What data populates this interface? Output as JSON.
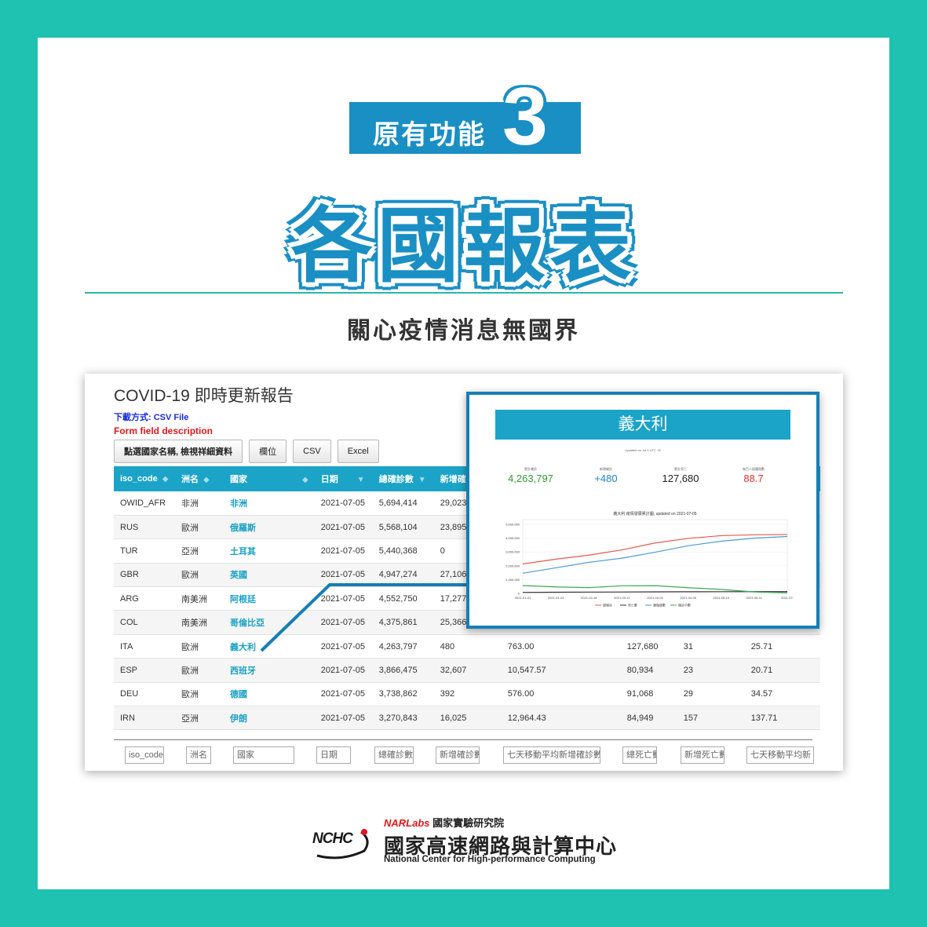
{
  "header": {
    "badge_label": "原有功能",
    "badge_number": "3",
    "title": "各國報表",
    "subtitle": "關心疫情消息無國界"
  },
  "report": {
    "title": "COVID-19 即時更新報告",
    "download": "下載方式: CSV File",
    "form_desc": "Form field description",
    "buttons": [
      "點選國家名稱, 檢視祥細資料",
      "欄位",
      "CSV",
      "Excel"
    ],
    "columns": [
      "iso_code",
      "洲名",
      "國家",
      "日期",
      "總確診數",
      "新增確診"
    ],
    "rows": [
      {
        "iso": "OWID_AFR",
        "continent": "非洲",
        "country": "非洲",
        "date": "2021-07-05",
        "total": "5,694,414",
        "new": "29,023",
        "avg": "",
        "deaths": "",
        "new_deaths": "",
        "avg_deaths": ""
      },
      {
        "iso": "RUS",
        "continent": "歐洲",
        "country": "俄羅斯",
        "date": "2021-07-05",
        "total": "5,568,104",
        "new": "23,895",
        "avg": "",
        "deaths": "",
        "new_deaths": "",
        "avg_deaths": ""
      },
      {
        "iso": "TUR",
        "continent": "亞洲",
        "country": "土耳其",
        "date": "2021-07-05",
        "total": "5,440,368",
        "new": "0",
        "avg": "",
        "deaths": "",
        "new_deaths": "",
        "avg_deaths": ""
      },
      {
        "iso": "GBR",
        "continent": "歐洲",
        "country": "英國",
        "date": "2021-07-05",
        "total": "4,947,274",
        "new": "27,106",
        "avg": "",
        "deaths": "",
        "new_deaths": "",
        "avg_deaths": ""
      },
      {
        "iso": "ARG",
        "continent": "南美洲",
        "country": "阿根廷",
        "date": "2021-07-05",
        "total": "4,552,750",
        "new": "17,277",
        "avg": "",
        "deaths": "",
        "new_deaths": "",
        "avg_deaths": ""
      },
      {
        "iso": "COL",
        "continent": "南美洲",
        "country": "哥倫比亞",
        "date": "2021-07-05",
        "total": "4,375,861",
        "new": "25,366",
        "avg": "",
        "deaths": "",
        "new_deaths": "",
        "avg_deaths": ""
      },
      {
        "iso": "ITA",
        "continent": "歐洲",
        "country": "義大利",
        "date": "2021-07-05",
        "total": "4,263,797",
        "new": "480",
        "avg": "763.00",
        "deaths": "127,680",
        "new_deaths": "31",
        "avg_deaths": "25.71"
      },
      {
        "iso": "ESP",
        "continent": "歐洲",
        "country": "西班牙",
        "date": "2021-07-05",
        "total": "3,866,475",
        "new": "32,607",
        "avg": "10,547.57",
        "deaths": "80,934",
        "new_deaths": "23",
        "avg_deaths": "20.71"
      },
      {
        "iso": "DEU",
        "continent": "歐洲",
        "country": "德國",
        "date": "2021-07-05",
        "total": "3,738,862",
        "new": "392",
        "avg": "576.00",
        "deaths": "91,068",
        "new_deaths": "29",
        "avg_deaths": "34.57"
      },
      {
        "iso": "IRN",
        "continent": "亞洲",
        "country": "伊朗",
        "date": "2021-07-05",
        "total": "3,270,843",
        "new": "16,025",
        "avg": "12,964.43",
        "deaths": "84,949",
        "new_deaths": "157",
        "avg_deaths": "137.71"
      }
    ],
    "filters": [
      "iso_code",
      "洲名",
      "國家",
      "日期",
      "總確診數",
      "新增確診數",
      "七天移動平均新增確診數",
      "總死亡數",
      "新增死亡數",
      "七天移動平均新"
    ]
  },
  "popup": {
    "country": "義大利",
    "updated": "Updated on Jul 5 UTC +8",
    "stats": [
      {
        "label": "累計確診",
        "value": "4,263,797",
        "color": "#2e9a36"
      },
      {
        "label": "新增確診",
        "value": "+480",
        "color": "#1e86c8"
      },
      {
        "label": "累計死亡",
        "value": "127,680",
        "color": "#222222"
      },
      {
        "label": "每百人接種劑數",
        "value": "88.7",
        "color": "#d9322a"
      }
    ]
  },
  "chart_data": {
    "type": "line",
    "title": "義大利 疫情發展累計圖, updated on 2021-07-05",
    "x": [
      "2021-01-01",
      "2021-01-24",
      "2021-02-16",
      "2021-03-11",
      "2021-04-03",
      "2021-04-26",
      "2021-05-19",
      "2021-06-11",
      "2021-07-"
    ],
    "yticks": [
      "0",
      "1,000,000",
      "2,000,000",
      "3,000,000",
      "4,000,000",
      "5,000,000"
    ],
    "ylim": [
      0,
      5000000
    ],
    "series": [
      {
        "name": "總確診",
        "color": "#e8584f",
        "values": [
          2130000,
          2480000,
          2770000,
          3150000,
          3650000,
          3980000,
          4180000,
          4245000,
          4263797
        ]
      },
      {
        "name": "死亡數",
        "color": "#333333",
        "values": [
          75000,
          86000,
          95000,
          102000,
          112000,
          120000,
          125000,
          127000,
          127680
        ]
      },
      {
        "name": "康復總數",
        "color": "#4a9bd6",
        "values": [
          1460000,
          1850000,
          2250000,
          2550000,
          2980000,
          3450000,
          3780000,
          4000000,
          4120000
        ]
      },
      {
        "name": "確診中數",
        "color": "#3aa85a",
        "values": [
          570000,
          470000,
          420000,
          550000,
          560000,
          410000,
          290000,
          105000,
          40000
        ]
      }
    ]
  },
  "logo": {
    "nchc": "NCHC",
    "narlabs": "NARLabs",
    "institute": "國家實驗研究院",
    "center": "國家高速網路與計算中心",
    "center_en": "National Center for High-performance Computing"
  }
}
